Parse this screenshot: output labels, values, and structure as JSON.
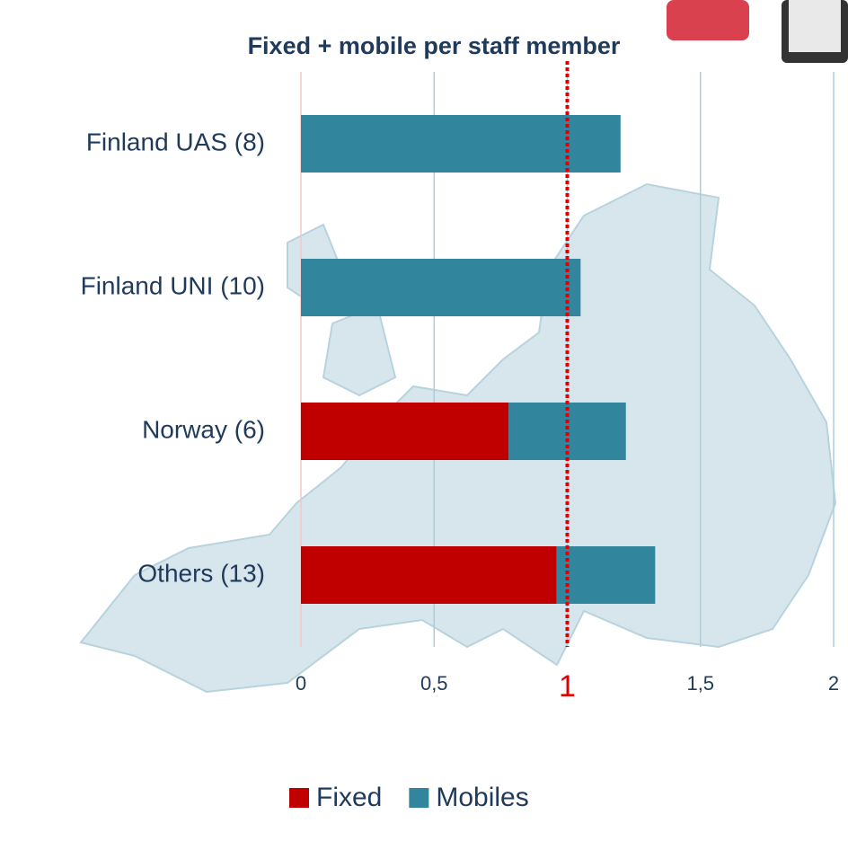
{
  "chart_data": {
    "type": "stacked_bar_horizontal",
    "title": "Fixed + mobile per staff member",
    "categories": [
      "Finland UAS (8)",
      "Finland UNI (10)",
      "Norway (6)",
      "Others (13)"
    ],
    "series": [
      {
        "name": "Fixed",
        "color": "#c00000",
        "values": [
          0,
          0,
          0.78,
          0.96
        ]
      },
      {
        "name": "Mobiles",
        "color": "#31859c",
        "values": [
          1.2,
          1.05,
          0.44,
          0.37
        ]
      }
    ],
    "xlim": [
      0,
      2
    ],
    "xticks": [
      0,
      {
        "value": 0.5,
        "label": "0,5"
      },
      1,
      {
        "value": 1.5,
        "label": "1,5"
      },
      2
    ],
    "reference_line": {
      "value": 1,
      "color": "#e00000"
    },
    "grid": true,
    "grid_color": "#a9cfdc",
    "legend": "bottom"
  }
}
